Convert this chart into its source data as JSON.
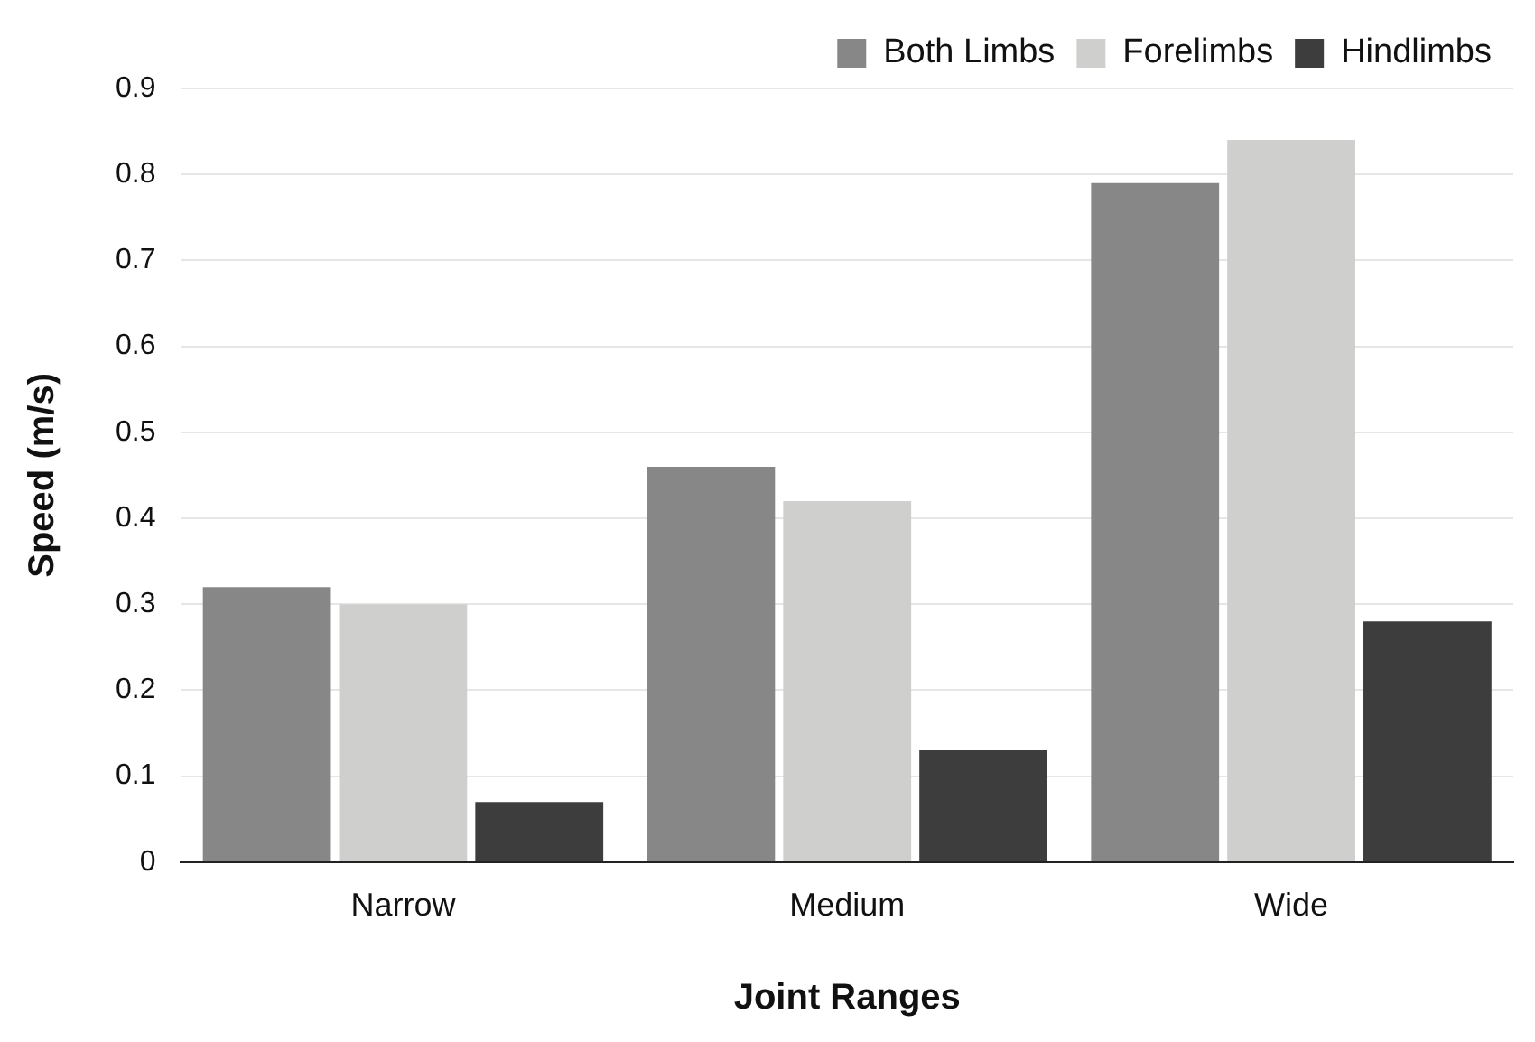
{
  "chart_data": {
    "type": "bar",
    "xlabel": "Joint Ranges",
    "ylabel": "Speed (m/s)",
    "categories": [
      "Narrow",
      "Medium",
      "Wide"
    ],
    "series": [
      {
        "name": "Both Limbs",
        "color": "#878787",
        "values": [
          0.32,
          0.46,
          0.79
        ]
      },
      {
        "name": "Forelimbs",
        "color": "#cfd0ce",
        "values": [
          0.3,
          0.42,
          0.84
        ]
      },
      {
        "name": "Hindlimbs",
        "color": "#3d3d3d",
        "values": [
          0.07,
          0.13,
          0.28
        ]
      }
    ],
    "ylim": [
      0,
      0.9
    ],
    "yticks": [
      0,
      0.1,
      0.2,
      0.3,
      0.4,
      0.5,
      0.6,
      0.7,
      0.8,
      0.9
    ],
    "grid": "y",
    "legend": "top right"
  }
}
